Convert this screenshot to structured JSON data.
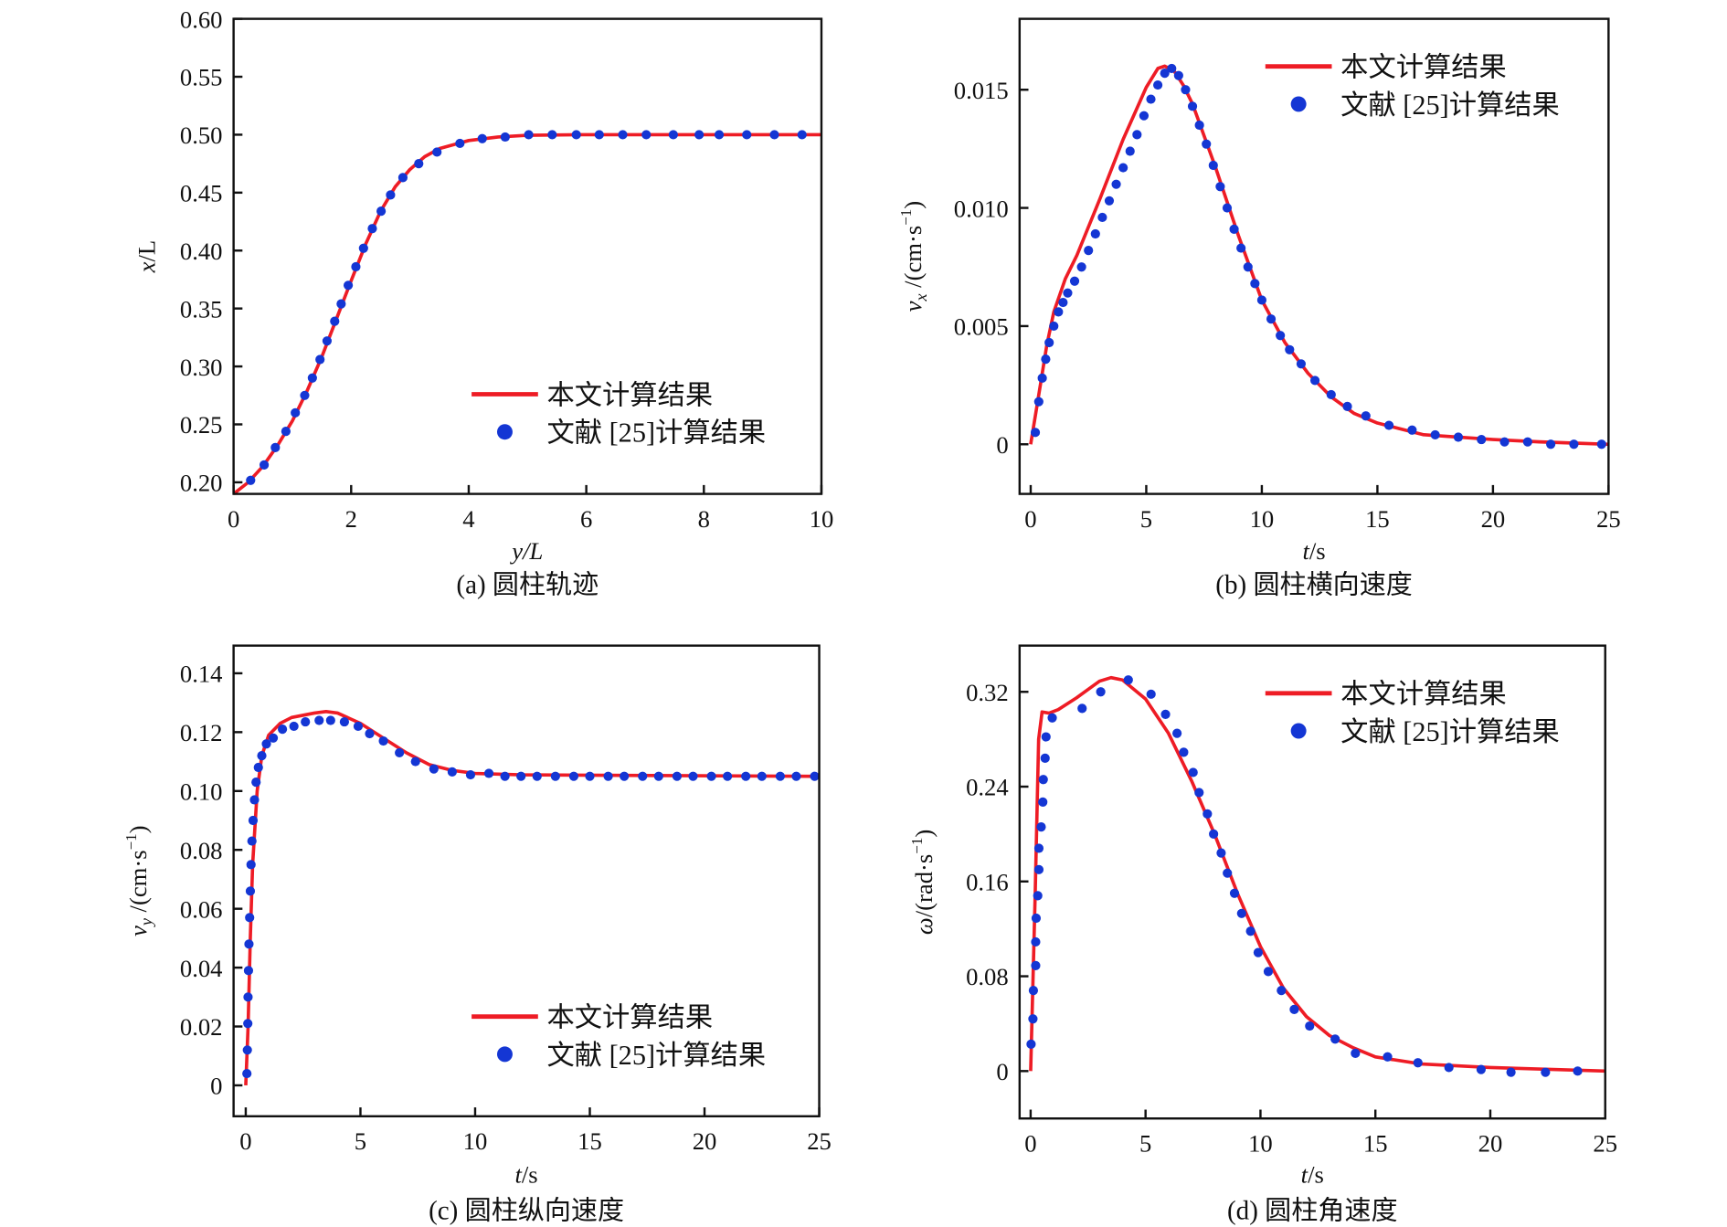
{
  "colors": {
    "line": "#ee1c25",
    "dots": "#1436d4",
    "axis": "#111111"
  },
  "chart_data": [
    {
      "id": "a",
      "type": "line+scatter",
      "caption": "(a) 圆柱轨迹",
      "xlabel": {
        "var": "y",
        "rest": "/L",
        "rest_italic": true
      },
      "ylabel": {
        "var": "x",
        "sub": "",
        "rest": "/L",
        "sup": "",
        "close": ""
      },
      "xlim": [
        0,
        10
      ],
      "ylim": [
        0.19,
        0.6
      ],
      "xticks": [
        0,
        2,
        4,
        6,
        8,
        10
      ],
      "xtick_labels": [
        "0",
        "2",
        "4",
        "6",
        "8",
        "10"
      ],
      "yticks": [
        0.2,
        0.25,
        0.3,
        0.35,
        0.4,
        0.45,
        0.5,
        0.55,
        0.6
      ],
      "ytick_labels": [
        "0.20",
        "0.25",
        "0.30",
        "0.35",
        "0.40",
        "0.45",
        "0.50",
        "0.55",
        "0.60"
      ],
      "legend_position": "bottom-right",
      "series": [
        {
          "name": "本文计算结果",
          "kind": "line",
          "x": [
            0,
            0.25,
            0.5,
            0.75,
            1,
            1.25,
            1.5,
            1.75,
            2,
            2.25,
            2.5,
            2.75,
            3,
            3.25,
            3.5,
            4,
            4.5,
            5,
            6,
            10
          ],
          "y": [
            0.19,
            0.2,
            0.214,
            0.232,
            0.253,
            0.279,
            0.308,
            0.341,
            0.374,
            0.406,
            0.434,
            0.455,
            0.47,
            0.481,
            0.488,
            0.495,
            0.498,
            0.4995,
            0.5,
            0.5
          ]
        },
        {
          "name": "文献 [25]计算结果",
          "kind": "scatter",
          "x": [
            0.29,
            0.52,
            0.71,
            0.89,
            1.05,
            1.21,
            1.34,
            1.47,
            1.59,
            1.72,
            1.83,
            1.95,
            2.08,
            2.21,
            2.36,
            2.51,
            2.67,
            2.88,
            3.15,
            3.46,
            3.85,
            4.23,
            4.62,
            5.02,
            5.42,
            5.83,
            6.22,
            6.62,
            7.02,
            7.48,
            7.92,
            8.26,
            8.73,
            9.2,
            9.67
          ],
          "y": [
            0.2017,
            0.215,
            0.23,
            0.244,
            0.26,
            0.275,
            0.29,
            0.306,
            0.322,
            0.339,
            0.354,
            0.37,
            0.386,
            0.402,
            0.419,
            0.434,
            0.448,
            0.463,
            0.475,
            0.485,
            0.4925,
            0.4966,
            0.498,
            0.5,
            0.5,
            0.5,
            0.5,
            0.5,
            0.5,
            0.5,
            0.5,
            0.5,
            0.5,
            0.5,
            0.5
          ]
        }
      ]
    },
    {
      "id": "b",
      "type": "line+scatter",
      "caption": "(b) 圆柱横向速度",
      "xlabel": {
        "var": "t",
        "rest": "/s",
        "rest_italic": false
      },
      "ylabel": {
        "var": "v",
        "sub": "x",
        "rest": " /(cm·s",
        "sup": "−1",
        "close": ")"
      },
      "xlim": [
        -0.48,
        25
      ],
      "ylim": [
        -0.0021,
        0.018
      ],
      "xticks": [
        0,
        5,
        10,
        15,
        20,
        25
      ],
      "xtick_labels": [
        "0",
        "5",
        "10",
        "15",
        "20",
        "25"
      ],
      "yticks": [
        0,
        0.005,
        0.01,
        0.015
      ],
      "ytick_labels": [
        "0",
        "0.005",
        "0.010",
        "0.015"
      ],
      "legend_position": "top-right",
      "series": [
        {
          "name": "本文计算结果",
          "kind": "line",
          "x": [
            0,
            0.3,
            0.7,
            1,
            1.5,
            2,
            3,
            4,
            5,
            5.5,
            5.8,
            6.2,
            6.6,
            7,
            8,
            9,
            10,
            11,
            12,
            13,
            14,
            15,
            17,
            20,
            22,
            25
          ],
          "y": [
            0,
            0.0018,
            0.0042,
            0.0056,
            0.007,
            0.008,
            0.0104,
            0.0129,
            0.0151,
            0.0159,
            0.016,
            0.0158,
            0.0152,
            0.0144,
            0.0117,
            0.0088,
            0.0061,
            0.0043,
            0.003,
            0.002,
            0.0013,
            0.0009,
            0.0004,
            0.0002,
            0.0001,
            0
          ]
        },
        {
          "name": "文献 [25]计算结果",
          "kind": "scatter",
          "x": [
            0.2,
            0.35,
            0.5,
            0.65,
            0.8,
            1.0,
            1.2,
            1.4,
            1.6,
            1.9,
            2.2,
            2.5,
            2.8,
            3.1,
            3.4,
            3.7,
            4.0,
            4.3,
            4.6,
            4.9,
            5.2,
            5.5,
            5.8,
            6.1,
            6.4,
            6.7,
            7.0,
            7.3,
            7.6,
            7.9,
            8.2,
            8.5,
            8.8,
            9.1,
            9.4,
            9.7,
            10.0,
            10.4,
            10.8,
            11.2,
            11.7,
            12.3,
            13.0,
            13.7,
            14.5,
            15.5,
            16.5,
            17.5,
            18.5,
            19.5,
            20.5,
            21.5,
            22.5,
            23.5,
            24.7
          ],
          "y": [
            0.0005,
            0.0018,
            0.0028,
            0.0036,
            0.0043,
            0.005,
            0.0056,
            0.006,
            0.0064,
            0.0069,
            0.0075,
            0.0082,
            0.0089,
            0.0096,
            0.0103,
            0.011,
            0.0117,
            0.0124,
            0.0131,
            0.0139,
            0.0146,
            0.0152,
            0.0157,
            0.0159,
            0.0156,
            0.015,
            0.0143,
            0.0135,
            0.0127,
            0.0118,
            0.0109,
            0.01,
            0.0091,
            0.0083,
            0.0075,
            0.0068,
            0.0061,
            0.0053,
            0.0046,
            0.004,
            0.0034,
            0.0027,
            0.0021,
            0.0016,
            0.0012,
            0.0008,
            0.0006,
            0.0004,
            0.0003,
            0.0002,
            0.0001,
            0.0001,
            0,
            0,
            0
          ]
        }
      ]
    },
    {
      "id": "c",
      "type": "line+scatter",
      "caption": "(c) 圆柱纵向速度",
      "xlabel": {
        "var": "t",
        "rest": "/s",
        "rest_italic": false
      },
      "ylabel": {
        "var": "v",
        "sub": "y",
        "rest": " /(cm·s",
        "sup": "−1",
        "close": ")"
      },
      "xlim": [
        -0.53,
        25
      ],
      "ylim": [
        -0.0105,
        0.1494
      ],
      "xticks": [
        0,
        5,
        10,
        15,
        20,
        25
      ],
      "xtick_labels": [
        "0",
        "5",
        "10",
        "15",
        "20",
        "25"
      ],
      "yticks": [
        0,
        0.02,
        0.04,
        0.06,
        0.08,
        0.1,
        0.12,
        0.14
      ],
      "ytick_labels": [
        "0",
        "0.02",
        "0.04",
        "0.06",
        "0.08",
        "0.10",
        "0.12",
        "0.14"
      ],
      "legend_position": "bottom-right",
      "series": [
        {
          "name": "本文计算结果",
          "kind": "line",
          "x": [
            0,
            0.1,
            0.2,
            0.3,
            0.5,
            0.7,
            1,
            1.5,
            2,
            3,
            3.5,
            4,
            5,
            6,
            7,
            8,
            9,
            10,
            12,
            25
          ],
          "y": [
            0,
            0.02,
            0.05,
            0.075,
            0.1,
            0.112,
            0.119,
            0.123,
            0.125,
            0.1265,
            0.127,
            0.1265,
            0.123,
            0.118,
            0.113,
            0.109,
            0.107,
            0.106,
            0.1055,
            0.105
          ]
        },
        {
          "name": "文献 [25]计算结果",
          "kind": "scatter",
          "x": [
            0.05,
            0.07,
            0.09,
            0.1,
            0.12,
            0.14,
            0.17,
            0.2,
            0.23,
            0.27,
            0.32,
            0.38,
            0.45,
            0.55,
            0.7,
            0.9,
            1.2,
            1.6,
            2.1,
            2.6,
            3.2,
            3.7,
            4.3,
            4.9,
            5.4,
            6.0,
            6.7,
            7.4,
            8.2,
            9.0,
            9.8,
            10.6,
            11.3,
            12.0,
            12.7,
            13.5,
            14.3,
            15.0,
            15.8,
            16.5,
            17.3,
            18.0,
            18.8,
            19.5,
            20.3,
            21.0,
            21.8,
            22.5,
            23.3,
            24.0,
            24.8
          ],
          "y": [
            0.004,
            0.012,
            0.021,
            0.03,
            0.039,
            0.048,
            0.057,
            0.066,
            0.075,
            0.083,
            0.09,
            0.097,
            0.103,
            0.108,
            0.112,
            0.116,
            0.118,
            0.121,
            0.122,
            0.1235,
            0.124,
            0.124,
            0.1235,
            0.122,
            0.1195,
            0.117,
            0.113,
            0.11,
            0.1075,
            0.1065,
            0.1055,
            0.106,
            0.105,
            0.105,
            0.105,
            0.105,
            0.105,
            0.105,
            0.105,
            0.105,
            0.105,
            0.105,
            0.105,
            0.105,
            0.105,
            0.105,
            0.105,
            0.105,
            0.105,
            0.105,
            0.105
          ]
        }
      ]
    },
    {
      "id": "d",
      "type": "line+scatter",
      "caption": "(d) 圆柱角速度",
      "xlabel": {
        "var": "t",
        "rest": "/s",
        "rest_italic": false
      },
      "ylabel": {
        "var": "ω",
        "sub": "",
        "rest": "/(rad·s",
        "sup": "−1",
        "close": ")"
      },
      "xlim": [
        -0.48,
        25
      ],
      "ylim": [
        -0.04,
        0.359
      ],
      "xticks": [
        0,
        5,
        10,
        15,
        20,
        25
      ],
      "xtick_labels": [
        "0",
        "5",
        "10",
        "15",
        "20",
        "25"
      ],
      "yticks": [
        0,
        0.08,
        0.16,
        0.24,
        0.32
      ],
      "ytick_labels": [
        "0",
        "0.08",
        "0.16",
        "0.24",
        "0.32"
      ],
      "legend_position": "top-right",
      "series": [
        {
          "name": "本文计算结果",
          "kind": "line",
          "x": [
            0,
            0.2,
            0.35,
            0.5,
            0.8,
            1.2,
            2,
            3,
            3.5,
            4,
            5,
            6,
            7,
            8,
            9,
            10,
            11,
            12,
            13,
            14,
            15,
            17,
            20,
            25
          ],
          "y": [
            0,
            0.15,
            0.28,
            0.303,
            0.302,
            0.305,
            0.315,
            0.329,
            0.332,
            0.33,
            0.314,
            0.285,
            0.245,
            0.2,
            0.15,
            0.105,
            0.07,
            0.046,
            0.03,
            0.02,
            0.012,
            0.006,
            0.003,
            0
          ]
        },
        {
          "name": "文献 [25]计算结果",
          "kind": "scatter",
          "x": [
            0.02,
            0.1,
            0.12,
            0.22,
            0.22,
            0.24,
            0.31,
            0.36,
            0.36,
            0.46,
            0.53,
            0.55,
            0.63,
            0.67,
            0.94,
            2.24,
            3.05,
            4.25,
            5.24,
            5.87,
            6.37,
            6.66,
            7.07,
            7.33,
            7.69,
            7.96,
            8.29,
            8.56,
            8.87,
            9.18,
            9.57,
            9.9,
            10.34,
            10.91,
            11.47,
            12.14,
            13.25,
            14.13,
            15.53,
            16.85,
            18.2,
            19.6,
            20.9,
            22.4,
            23.8
          ],
          "y": [
            0.0227,
            0.044,
            0.068,
            0.089,
            0.109,
            0.129,
            0.148,
            0.17,
            0.188,
            0.206,
            0.227,
            0.246,
            0.264,
            0.282,
            0.298,
            0.306,
            0.32,
            0.33,
            0.318,
            0.301,
            0.285,
            0.269,
            0.252,
            0.235,
            0.217,
            0.2,
            0.184,
            0.167,
            0.15,
            0.133,
            0.118,
            0.1,
            0.084,
            0.068,
            0.052,
            0.038,
            0.027,
            0.015,
            0.012,
            0.007,
            0.003,
            0.0013,
            -0.001,
            -0.001,
            0
          ]
        }
      ]
    }
  ]
}
